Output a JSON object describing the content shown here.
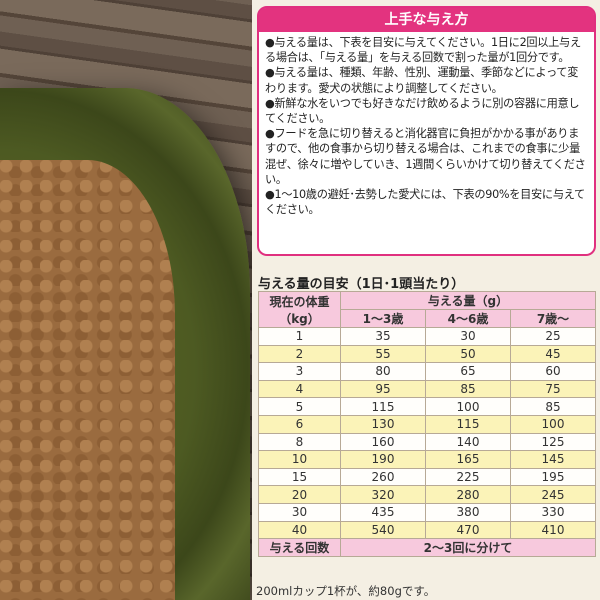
{
  "guide": {
    "title": "上手な与え方",
    "paragraphs": [
      "●与える量は、下表を目安に与えてください。1日に2回以上与える場合は、「与える量」を与える回数で割った量が1回分です。",
      "●与える量は、種類、年齢、性別、運動量、季節などによって変わります。愛犬の状態により調整してください。",
      "●新鮮な水をいつでも好きなだけ飲めるように別の容器に用意してください。",
      "●フードを急に切り替えると消化器官に負担がかかる事がありますので、他の食事から切り替える場合は、これまでの食事に少量混ぜ、徐々に増やしていき、1週間くらいかけて切り替えてください。",
      "●1〜10歳の避妊･去勢した愛犬には、下表の90%を目安に与えてください。"
    ]
  },
  "table": {
    "title": "与える量の目安（1日･1頭当たり）",
    "weight_header": "現在の体重（kg）",
    "amount_header": "与える量（g）",
    "age_columns": [
      "1〜3歳",
      "4〜6歳",
      "7歳〜"
    ],
    "rows": [
      [
        "1",
        "35",
        "30",
        "25"
      ],
      [
        "2",
        "55",
        "50",
        "45"
      ],
      [
        "3",
        "80",
        "65",
        "60"
      ],
      [
        "4",
        "95",
        "85",
        "75"
      ],
      [
        "5",
        "115",
        "100",
        "85"
      ],
      [
        "6",
        "130",
        "115",
        "100"
      ],
      [
        "8",
        "160",
        "140",
        "125"
      ],
      [
        "10",
        "190",
        "165",
        "145"
      ],
      [
        "15",
        "260",
        "225",
        "195"
      ],
      [
        "20",
        "320",
        "280",
        "245"
      ],
      [
        "30",
        "435",
        "380",
        "330"
      ],
      [
        "40",
        "540",
        "470",
        "410"
      ]
    ],
    "frequency_label": "与える回数",
    "frequency_value": "2〜3回に分けて"
  },
  "note": "200mlカップ1杯が、約80gです。",
  "colors": {
    "accent": "#e3337f",
    "header_pink": "#f7c9dd",
    "row_yellow": "#fbf3b8"
  }
}
